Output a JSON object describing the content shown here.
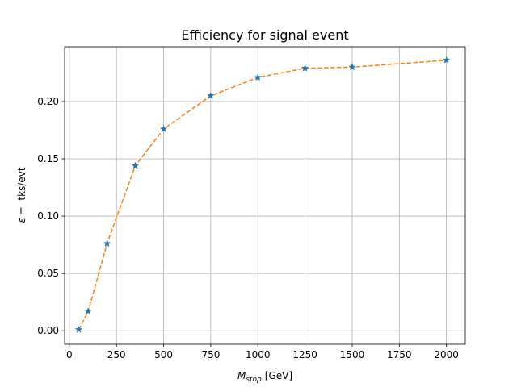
{
  "chart_data": {
    "type": "line",
    "title": "Efficiency for signal event",
    "xlabel": {
      "symbol": "M",
      "subscript": "stop",
      "unit": "[GeV]"
    },
    "ylabel": {
      "symbol": "ε",
      "text": " =  tks/evt"
    },
    "xlim": [
      -25,
      2100
    ],
    "ylim": [
      -0.0118,
      0.2478
    ],
    "x_ticks": [
      0,
      250,
      500,
      750,
      1000,
      1250,
      1500,
      1750,
      2000
    ],
    "y_ticks": [
      0.0,
      0.05,
      0.1,
      0.15,
      0.2
    ],
    "y_tick_labels": [
      "0.00",
      "0.05",
      "0.10",
      "0.15",
      "0.20"
    ],
    "grid": true,
    "series": [
      {
        "x": [
          50,
          100,
          200,
          350,
          500,
          750,
          1000,
          1250,
          1500,
          2000
        ],
        "y": [
          0.001,
          0.017,
          0.076,
          0.144,
          0.176,
          0.205,
          0.221,
          0.229,
          0.23,
          0.236
        ],
        "line_color": "#ff7f0e",
        "line_style": "dashed",
        "marker": "star",
        "marker_color": "#1f77b4"
      }
    ]
  }
}
